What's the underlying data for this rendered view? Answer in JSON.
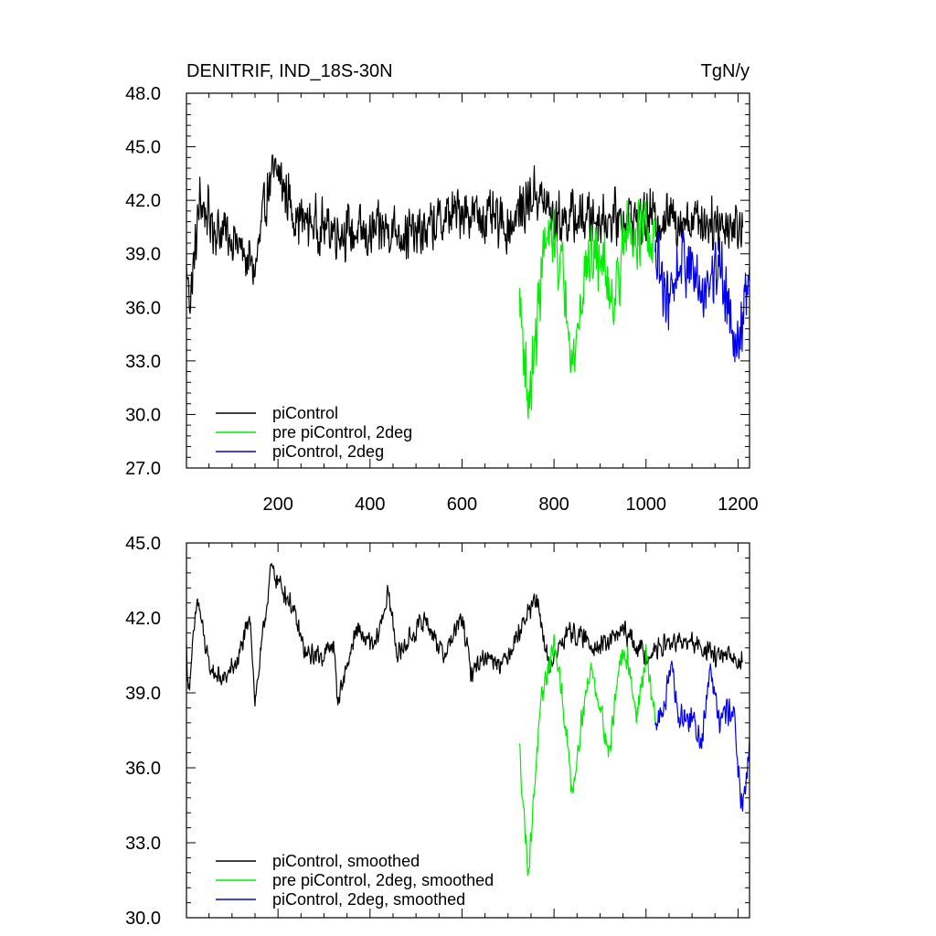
{
  "chart_data": [
    {
      "type": "line",
      "title": "DENITRIF, IND_18S-30N",
      "units": "TgN/y",
      "xlim": [
        1,
        1225
      ],
      "ylim": [
        27.0,
        48.0
      ],
      "xticks": [
        200,
        400,
        600,
        800,
        1000,
        1200
      ],
      "yticks": [
        "27.0",
        "30.0",
        "33.0",
        "36.0",
        "39.0",
        "42.0",
        "45.0",
        "48.0"
      ],
      "grid": false,
      "legend_position": "bottom-left",
      "series": [
        {
          "name": "piControl",
          "color": "#000000",
          "x_start": 1,
          "x_end": 1210,
          "mean": 40.8,
          "noise_amplitude": 1.8,
          "anchors": [
            [
              1,
              38.0
            ],
            [
              10,
              36.5
            ],
            [
              30,
              42.0
            ],
            [
              60,
              40.5
            ],
            [
              100,
              40.0
            ],
            [
              150,
              38.0
            ],
            [
              180,
              43.0
            ],
            [
              200,
              43.5
            ],
            [
              240,
              41.0
            ],
            [
              300,
              40.5
            ],
            [
              400,
              40.0
            ],
            [
              440,
              40.5
            ],
            [
              500,
              40.0
            ],
            [
              600,
              41.5
            ],
            [
              700,
              40.5
            ],
            [
              760,
              42.5
            ],
            [
              800,
              41.0
            ],
            [
              1000,
              41.0
            ],
            [
              1100,
              41.0
            ],
            [
              1210,
              40.5
            ]
          ]
        },
        {
          "name": "pre piControl, 2deg",
          "color": "#00ee00",
          "x_start": 725,
          "x_end": 1020,
          "mean": 38.5,
          "noise_amplitude": 2.3,
          "anchors": [
            [
              725,
              36.5
            ],
            [
              735,
              33.5
            ],
            [
              745,
              30.5
            ],
            [
              760,
              34.0
            ],
            [
              775,
              39.0
            ],
            [
              800,
              40.0
            ],
            [
              830,
              36.5
            ],
            [
              840,
              32.5
            ],
            [
              870,
              38.5
            ],
            [
              900,
              39.0
            ],
            [
              930,
              36.5
            ],
            [
              960,
              40.5
            ],
            [
              1000,
              40.0
            ],
            [
              1020,
              39.0
            ]
          ]
        },
        {
          "name": "piControl, 2deg",
          "color": "#0000ee",
          "x_start": 1020,
          "x_end": 1225,
          "mean": 38.0,
          "noise_amplitude": 2.3,
          "anchors": [
            [
              1020,
              38.5
            ],
            [
              1050,
              36.5
            ],
            [
              1080,
              39.0
            ],
            [
              1120,
              37.0
            ],
            [
              1160,
              38.5
            ],
            [
              1200,
              34.0
            ],
            [
              1225,
              37.5
            ]
          ]
        }
      ]
    },
    {
      "type": "line",
      "xlim": [
        1,
        1225
      ],
      "ylim": [
        30.0,
        45.0
      ],
      "xticks": [
        200,
        400,
        600,
        800,
        1000,
        1200
      ],
      "yticks": [
        "30.0",
        "33.0",
        "36.0",
        "39.0",
        "42.0",
        "45.0"
      ],
      "grid": false,
      "legend_position": "bottom-left",
      "series": [
        {
          "name": "piControl, smoothed",
          "color": "#000000",
          "x_start": 1,
          "x_end": 1210,
          "noise_amplitude": 0.5,
          "anchors": [
            [
              1,
              40.8
            ],
            [
              5,
              39.0
            ],
            [
              25,
              42.8
            ],
            [
              50,
              40.0
            ],
            [
              80,
              39.5
            ],
            [
              110,
              40.2
            ],
            [
              140,
              42.0
            ],
            [
              150,
              38.6
            ],
            [
              175,
              42.5
            ],
            [
              185,
              44.0
            ],
            [
              200,
              43.5
            ],
            [
              230,
              42.5
            ],
            [
              260,
              40.5
            ],
            [
              300,
              40.5
            ],
            [
              320,
              41.0
            ],
            [
              330,
              38.7
            ],
            [
              370,
              41.5
            ],
            [
              410,
              40.8
            ],
            [
              440,
              43.0
            ],
            [
              460,
              40.5
            ],
            [
              520,
              42.0
            ],
            [
              560,
              40.5
            ],
            [
              600,
              42.0
            ],
            [
              620,
              39.8
            ],
            [
              650,
              40.5
            ],
            [
              690,
              40.2
            ],
            [
              760,
              42.8
            ],
            [
              790,
              40.0
            ],
            [
              830,
              41.5
            ],
            [
              900,
              40.8
            ],
            [
              950,
              41.5
            ],
            [
              1000,
              40.5
            ],
            [
              1050,
              41.0
            ],
            [
              1100,
              41.0
            ],
            [
              1150,
              40.5
            ],
            [
              1210,
              40.3
            ]
          ]
        },
        {
          "name": "pre piControl, 2deg, smoothed",
          "color": "#00ee00",
          "x_start": 725,
          "x_end": 1020,
          "noise_amplitude": 0.6,
          "anchors": [
            [
              725,
              36.8
            ],
            [
              735,
              34.0
            ],
            [
              745,
              31.8
            ],
            [
              760,
              36.0
            ],
            [
              775,
              39.0
            ],
            [
              800,
              41.0
            ],
            [
              820,
              38.5
            ],
            [
              840,
              35.0
            ],
            [
              860,
              38.0
            ],
            [
              880,
              40.0
            ],
            [
              900,
              38.5
            ],
            [
              920,
              36.5
            ],
            [
              940,
              40.0
            ],
            [
              960,
              40.5
            ],
            [
              980,
              38.0
            ],
            [
              1000,
              40.5
            ],
            [
              1020,
              38.0
            ]
          ]
        },
        {
          "name": "piControl, 2deg, smoothed",
          "color": "#0000ee",
          "x_start": 1020,
          "x_end": 1225,
          "noise_amplitude": 0.7,
          "anchors": [
            [
              1020,
              37.5
            ],
            [
              1040,
              38.5
            ],
            [
              1055,
              40.5
            ],
            [
              1070,
              38.0
            ],
            [
              1100,
              38.0
            ],
            [
              1120,
              37.0
            ],
            [
              1140,
              40.2
            ],
            [
              1160,
              38.0
            ],
            [
              1190,
              38.5
            ],
            [
              1200,
              36.0
            ],
            [
              1210,
              34.0
            ],
            [
              1225,
              37.0
            ]
          ]
        }
      ]
    }
  ]
}
